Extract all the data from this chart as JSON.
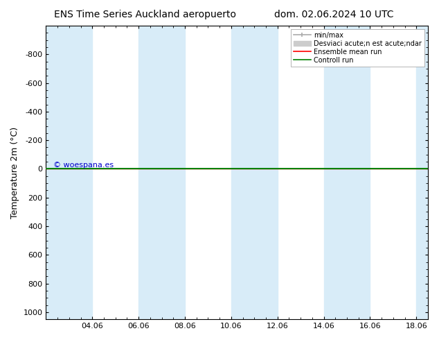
{
  "title_left": "ENS Time Series Auckland aeropuerto",
  "title_right": "dom. 02.06.2024 10 UTC",
  "ylabel": "Temperature 2m (°C)",
  "ylim": [
    -1000,
    1050
  ],
  "yticks": [
    -800,
    -600,
    -400,
    -200,
    0,
    200,
    400,
    600,
    800,
    1000
  ],
  "xlim": [
    0,
    16.5
  ],
  "xtick_labels": [
    "04.06",
    "06.06",
    "08.06",
    "10.06",
    "12.06",
    "14.06",
    "16.06",
    "18.06"
  ],
  "xtick_positions": [
    2,
    4,
    6,
    8,
    10,
    12,
    14,
    16
  ],
  "background_color": "#ffffff",
  "plot_bg_color": "#ffffff",
  "shade_color": "#d8ecf8",
  "shade_bands": [
    [
      0,
      2
    ],
    [
      4,
      6
    ],
    [
      8,
      10
    ],
    [
      12,
      14
    ],
    [
      16,
      16.5
    ]
  ],
  "line_y": 0,
  "ensemble_mean_color": "#ff0000",
  "control_run_color": "#008000",
  "watermark_text": "© woespana.es",
  "watermark_color": "#0000cc",
  "legend_labels": [
    "min/max",
    "Desviaci acute;n est acute;ndar",
    "Ensemble mean run",
    "Controll run"
  ],
  "legend_colors": [
    "#aaaaaa",
    "#cccccc",
    "#ff0000",
    "#008000"
  ],
  "invert_yaxis": true
}
